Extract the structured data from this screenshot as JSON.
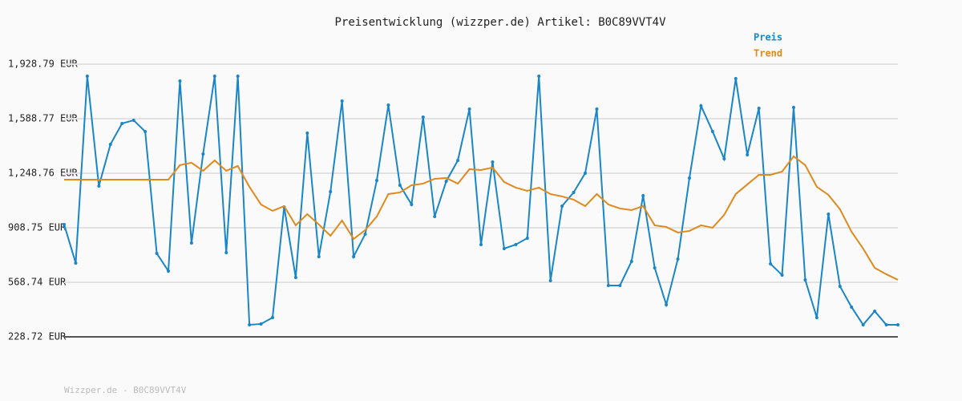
{
  "chart_data": {
    "type": "line",
    "title": "Preisentwicklung (wizzper.de) Artikel: B0C89VVT4V",
    "footer": "Wizzper.de - B0C89VVT4V",
    "ylim": [
      228.72,
      1928.79
    ],
    "yticks": [
      {
        "value": 228.72,
        "label": "228.72 EUR"
      },
      {
        "value": 568.74,
        "label": "568.74 EUR"
      },
      {
        "value": 908.75,
        "label": "908.75 EUR"
      },
      {
        "value": 1248.76,
        "label": "1,248.76 EUR"
      },
      {
        "value": 1588.77,
        "label": "1,588.77 EUR"
      },
      {
        "value": 1928.79,
        "label": "1,928.79 EUR"
      }
    ],
    "grid": true,
    "legend": "top-right",
    "series": [
      {
        "name": "Preis",
        "color": "#1a86c8",
        "markers": true,
        "values": [
          929,
          689,
          1854,
          1169,
          1429,
          1559,
          1579,
          1509,
          749,
          639,
          1824,
          814,
          1369,
          1854,
          754,
          1854,
          304,
          309,
          349,
          1039,
          599,
          1499,
          729,
          1134,
          1699,
          729,
          869,
          1204,
          1674,
          1174,
          1054,
          1599,
          979,
          1199,
          1329,
          1649,
          804,
          1319,
          779,
          804,
          844,
          1854,
          579,
          1044,
          1129,
          1249,
          1649,
          549,
          549,
          699,
          1109,
          659,
          429,
          714,
          1219,
          1669,
          1509,
          1339,
          1839,
          1364,
          1654,
          684,
          614,
          1659,
          584,
          349,
          994,
          544,
          414,
          304,
          389,
          304,
          304
        ]
      },
      {
        "name": "Trend",
        "color": "#e08a1e",
        "markers": false,
        "values": [
          1209,
          1209,
          1209,
          1209,
          1209,
          1209,
          1209,
          1209,
          1209,
          1209,
          1299,
          1314,
          1264,
          1329,
          1264,
          1294,
          1164,
          1054,
          1014,
          1044,
          924,
          994,
          929,
          859,
          954,
          839,
          894,
          979,
          1119,
          1129,
          1174,
          1184,
          1214,
          1219,
          1184,
          1274,
          1269,
          1284,
          1194,
          1159,
          1139,
          1159,
          1119,
          1104,
          1084,
          1044,
          1119,
          1054,
          1029,
          1019,
          1044,
          924,
          914,
          879,
          889,
          924,
          909,
          989,
          1119,
          1179,
          1239,
          1239,
          1259,
          1354,
          1299,
          1164,
          1114,
          1024,
          884,
          779,
          659,
          619,
          584
        ]
      }
    ]
  }
}
